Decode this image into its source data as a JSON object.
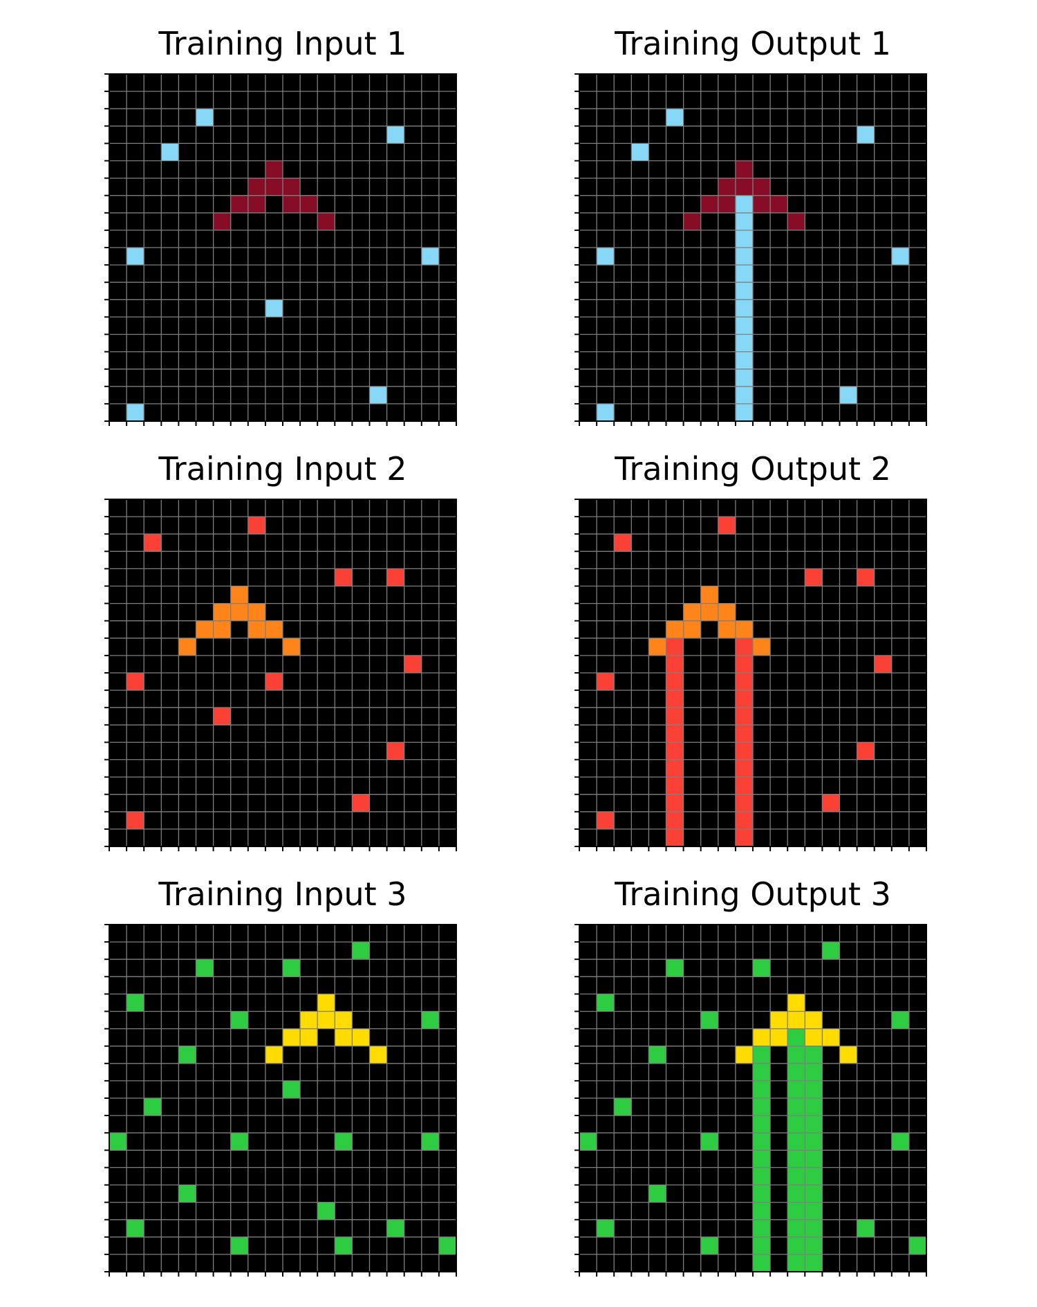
{
  "grid_size": 20,
  "colors": {
    "0": "#000000",
    "1": "#87d8f7",
    "2": "#fb4136",
    "3": "#2ecc40",
    "4": "#ffdc00",
    "7": "#ff851b",
    "9": "#870c25"
  },
  "grid_line_color": "#7f7f7f",
  "panels": [
    {
      "title": "Training Input 1",
      "cells": [
        [
          2,
          5,
          1
        ],
        [
          3,
          16,
          1
        ],
        [
          4,
          3,
          1
        ],
        [
          5,
          9,
          9
        ],
        [
          6,
          8,
          9
        ],
        [
          6,
          9,
          9
        ],
        [
          6,
          10,
          9
        ],
        [
          7,
          7,
          9
        ],
        [
          7,
          8,
          9
        ],
        [
          7,
          10,
          9
        ],
        [
          7,
          11,
          9
        ],
        [
          8,
          6,
          9
        ],
        [
          8,
          12,
          9
        ],
        [
          10,
          1,
          1
        ],
        [
          10,
          18,
          1
        ],
        [
          13,
          9,
          1
        ],
        [
          18,
          15,
          1
        ],
        [
          19,
          1,
          1
        ]
      ]
    },
    {
      "title": "Training Output 1",
      "cells": [
        [
          2,
          5,
          1
        ],
        [
          3,
          16,
          1
        ],
        [
          4,
          3,
          1
        ],
        [
          5,
          9,
          9
        ],
        [
          6,
          8,
          9
        ],
        [
          6,
          9,
          9
        ],
        [
          6,
          10,
          9
        ],
        [
          7,
          7,
          9
        ],
        [
          7,
          8,
          9
        ],
        [
          7,
          9,
          1
        ],
        [
          7,
          10,
          9
        ],
        [
          7,
          11,
          9
        ],
        [
          8,
          6,
          9
        ],
        [
          8,
          9,
          1
        ],
        [
          8,
          12,
          9
        ],
        [
          9,
          9,
          1
        ],
        [
          10,
          1,
          1
        ],
        [
          10,
          9,
          1
        ],
        [
          10,
          18,
          1
        ],
        [
          11,
          9,
          1
        ],
        [
          12,
          9,
          1
        ],
        [
          13,
          9,
          1
        ],
        [
          14,
          9,
          1
        ],
        [
          15,
          9,
          1
        ],
        [
          16,
          9,
          1
        ],
        [
          17,
          9,
          1
        ],
        [
          18,
          9,
          1
        ],
        [
          18,
          15,
          1
        ],
        [
          19,
          1,
          1
        ],
        [
          19,
          9,
          1
        ]
      ]
    },
    {
      "title": "Training Input 2",
      "cells": [
        [
          1,
          8,
          2
        ],
        [
          2,
          2,
          2
        ],
        [
          4,
          13,
          2
        ],
        [
          4,
          16,
          2
        ],
        [
          5,
          7,
          7
        ],
        [
          6,
          6,
          7
        ],
        [
          6,
          7,
          7
        ],
        [
          6,
          8,
          7
        ],
        [
          7,
          5,
          7
        ],
        [
          7,
          6,
          7
        ],
        [
          7,
          8,
          7
        ],
        [
          7,
          9,
          7
        ],
        [
          8,
          4,
          7
        ],
        [
          8,
          10,
          7
        ],
        [
          9,
          17,
          2
        ],
        [
          10,
          1,
          2
        ],
        [
          10,
          9,
          2
        ],
        [
          12,
          6,
          2
        ],
        [
          14,
          16,
          2
        ],
        [
          17,
          14,
          2
        ],
        [
          18,
          1,
          2
        ]
      ]
    },
    {
      "title": "Training Output 2",
      "cells": [
        [
          1,
          8,
          2
        ],
        [
          2,
          2,
          2
        ],
        [
          4,
          13,
          2
        ],
        [
          4,
          16,
          2
        ],
        [
          5,
          7,
          7
        ],
        [
          6,
          6,
          7
        ],
        [
          6,
          7,
          7
        ],
        [
          6,
          8,
          7
        ],
        [
          7,
          5,
          7
        ],
        [
          7,
          6,
          7
        ],
        [
          7,
          8,
          7
        ],
        [
          7,
          9,
          7
        ],
        [
          8,
          4,
          7
        ],
        [
          8,
          5,
          2
        ],
        [
          8,
          9,
          2
        ],
        [
          8,
          10,
          7
        ],
        [
          9,
          5,
          2
        ],
        [
          9,
          9,
          2
        ],
        [
          9,
          17,
          2
        ],
        [
          10,
          1,
          2
        ],
        [
          10,
          5,
          2
        ],
        [
          10,
          9,
          2
        ],
        [
          11,
          5,
          2
        ],
        [
          11,
          9,
          2
        ],
        [
          12,
          5,
          2
        ],
        [
          12,
          9,
          2
        ],
        [
          13,
          5,
          2
        ],
        [
          13,
          9,
          2
        ],
        [
          14,
          5,
          2
        ],
        [
          14,
          9,
          2
        ],
        [
          14,
          16,
          2
        ],
        [
          15,
          5,
          2
        ],
        [
          15,
          9,
          2
        ],
        [
          16,
          5,
          2
        ],
        [
          16,
          9,
          2
        ],
        [
          17,
          5,
          2
        ],
        [
          17,
          9,
          2
        ],
        [
          17,
          14,
          2
        ],
        [
          18,
          1,
          2
        ],
        [
          18,
          5,
          2
        ],
        [
          18,
          9,
          2
        ],
        [
          19,
          5,
          2
        ],
        [
          19,
          9,
          2
        ]
      ]
    },
    {
      "title": "Training Input 3",
      "cells": [
        [
          1,
          14,
          3
        ],
        [
          2,
          5,
          3
        ],
        [
          2,
          10,
          3
        ],
        [
          4,
          1,
          3
        ],
        [
          4,
          12,
          4
        ],
        [
          5,
          7,
          3
        ],
        [
          5,
          11,
          4
        ],
        [
          5,
          12,
          4
        ],
        [
          5,
          13,
          4
        ],
        [
          5,
          18,
          3
        ],
        [
          6,
          10,
          4
        ],
        [
          6,
          11,
          4
        ],
        [
          6,
          13,
          4
        ],
        [
          6,
          14,
          4
        ],
        [
          7,
          4,
          3
        ],
        [
          7,
          9,
          4
        ],
        [
          7,
          15,
          4
        ],
        [
          9,
          10,
          3
        ],
        [
          10,
          2,
          3
        ],
        [
          12,
          0,
          3
        ],
        [
          12,
          7,
          3
        ],
        [
          12,
          13,
          3
        ],
        [
          12,
          18,
          3
        ],
        [
          15,
          4,
          3
        ],
        [
          16,
          12,
          3
        ],
        [
          17,
          1,
          3
        ],
        [
          17,
          16,
          3
        ],
        [
          18,
          7,
          3
        ],
        [
          18,
          13,
          3
        ],
        [
          18,
          19,
          3
        ]
      ]
    },
    {
      "title": "Training Output 3",
      "cells": [
        [
          1,
          14,
          3
        ],
        [
          2,
          5,
          3
        ],
        [
          2,
          10,
          3
        ],
        [
          4,
          1,
          3
        ],
        [
          4,
          12,
          4
        ],
        [
          5,
          7,
          3
        ],
        [
          5,
          11,
          4
        ],
        [
          5,
          12,
          4
        ],
        [
          5,
          13,
          4
        ],
        [
          5,
          18,
          3
        ],
        [
          6,
          10,
          4
        ],
        [
          6,
          11,
          4
        ],
        [
          6,
          12,
          3
        ],
        [
          6,
          13,
          4
        ],
        [
          6,
          14,
          4
        ],
        [
          7,
          4,
          3
        ],
        [
          7,
          9,
          4
        ],
        [
          7,
          10,
          3
        ],
        [
          7,
          12,
          3
        ],
        [
          7,
          13,
          3
        ],
        [
          7,
          15,
          4
        ],
        [
          8,
          10,
          3
        ],
        [
          8,
          12,
          3
        ],
        [
          8,
          13,
          3
        ],
        [
          9,
          10,
          3
        ],
        [
          9,
          12,
          3
        ],
        [
          9,
          13,
          3
        ],
        [
          10,
          2,
          3
        ],
        [
          10,
          10,
          3
        ],
        [
          10,
          12,
          3
        ],
        [
          10,
          13,
          3
        ],
        [
          11,
          10,
          3
        ],
        [
          11,
          12,
          3
        ],
        [
          11,
          13,
          3
        ],
        [
          12,
          0,
          3
        ],
        [
          12,
          7,
          3
        ],
        [
          12,
          10,
          3
        ],
        [
          12,
          12,
          3
        ],
        [
          12,
          13,
          3
        ],
        [
          12,
          18,
          3
        ],
        [
          13,
          10,
          3
        ],
        [
          13,
          12,
          3
        ],
        [
          13,
          13,
          3
        ],
        [
          14,
          10,
          3
        ],
        [
          14,
          12,
          3
        ],
        [
          14,
          13,
          3
        ],
        [
          15,
          4,
          3
        ],
        [
          15,
          10,
          3
        ],
        [
          15,
          12,
          3
        ],
        [
          15,
          13,
          3
        ],
        [
          16,
          10,
          3
        ],
        [
          16,
          12,
          3
        ],
        [
          16,
          13,
          3
        ],
        [
          17,
          1,
          3
        ],
        [
          17,
          10,
          3
        ],
        [
          17,
          12,
          3
        ],
        [
          17,
          13,
          3
        ],
        [
          17,
          16,
          3
        ],
        [
          18,
          7,
          3
        ],
        [
          18,
          10,
          3
        ],
        [
          18,
          12,
          3
        ],
        [
          18,
          13,
          3
        ],
        [
          18,
          19,
          3
        ],
        [
          19,
          10,
          3
        ],
        [
          19,
          12,
          3
        ],
        [
          19,
          13,
          3
        ]
      ]
    }
  ]
}
